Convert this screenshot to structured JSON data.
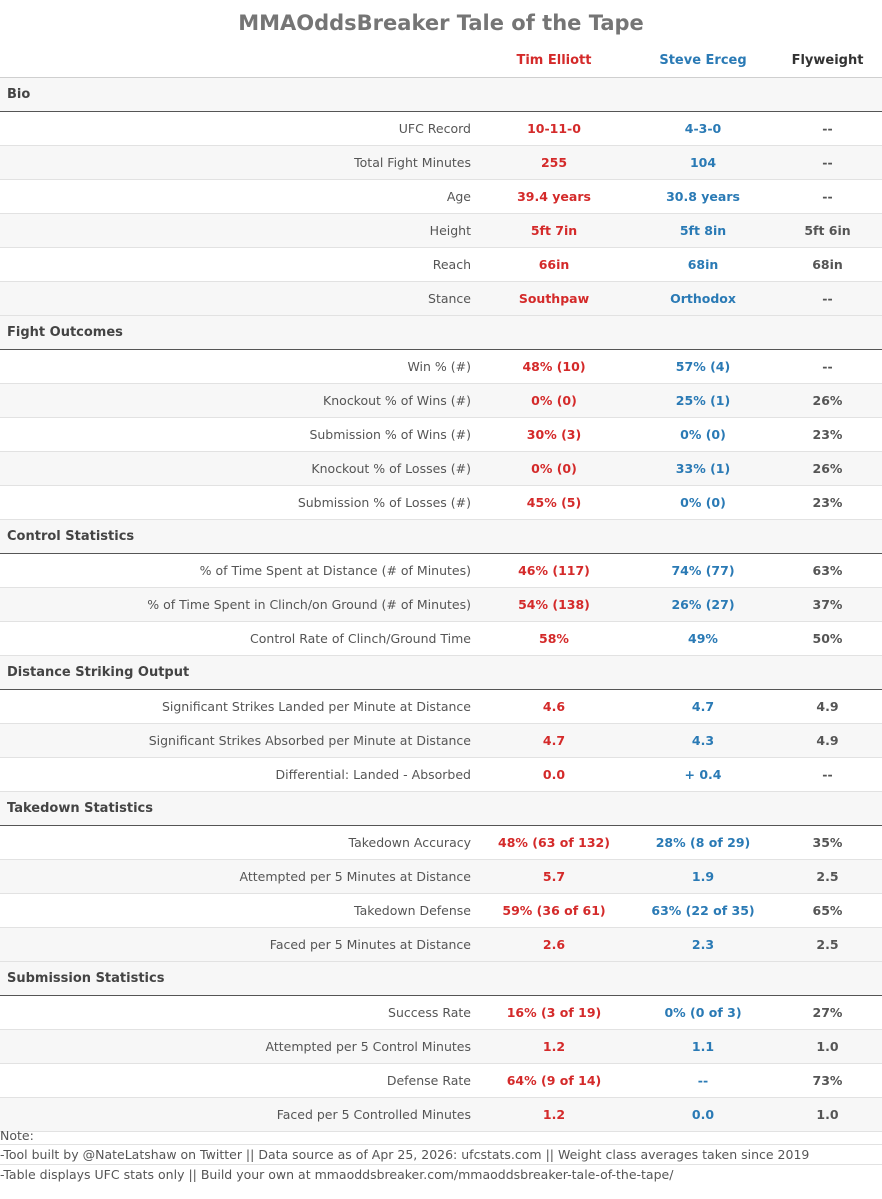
{
  "title": "MMAOddsBreaker Tale of the Tape",
  "fighters": {
    "fighter1": {
      "name": "Tim Elliott",
      "color": "#d42a2a"
    },
    "fighter2": {
      "name": "Steve Erceg",
      "color": "#2a7ab5"
    },
    "weight_class": {
      "name": "Flyweight",
      "color": "#333333"
    }
  },
  "sections": [
    {
      "name": "Bio",
      "rows": [
        {
          "label": "UFC Record",
          "f1": "10-11-0",
          "f2": "4-3-0",
          "wc": "--"
        },
        {
          "label": "Total Fight Minutes",
          "f1": "255",
          "f2": "104",
          "wc": "--"
        },
        {
          "label": "Age",
          "f1": "39.4 years",
          "f2": "30.8 years",
          "wc": "--"
        },
        {
          "label": "Height",
          "f1": "5ft 7in",
          "f2": "5ft 8in",
          "wc": "5ft 6in"
        },
        {
          "label": "Reach",
          "f1": "66in",
          "f2": "68in",
          "wc": "68in"
        },
        {
          "label": "Stance",
          "f1": "Southpaw",
          "f2": "Orthodox",
          "wc": "--"
        }
      ]
    },
    {
      "name": "Fight Outcomes",
      "rows": [
        {
          "label": "Win % (#)",
          "f1": "48% (10)",
          "f2": "57% (4)",
          "wc": "--"
        },
        {
          "label": "Knockout % of Wins (#)",
          "f1": "0% (0)",
          "f2": "25% (1)",
          "wc": "26%"
        },
        {
          "label": "Submission % of Wins (#)",
          "f1": "30% (3)",
          "f2": "0% (0)",
          "wc": "23%"
        },
        {
          "label": "Knockout % of Losses (#)",
          "f1": "0% (0)",
          "f2": "33% (1)",
          "wc": "26%"
        },
        {
          "label": "Submission % of Losses (#)",
          "f1": "45% (5)",
          "f2": "0% (0)",
          "wc": "23%"
        }
      ]
    },
    {
      "name": "Control Statistics",
      "rows": [
        {
          "label": "% of Time Spent at Distance (# of Minutes)",
          "f1": "46% (117)",
          "f2": "74% (77)",
          "wc": "63%"
        },
        {
          "label": "% of Time Spent in Clinch/on Ground (# of Minutes)",
          "f1": "54% (138)",
          "f2": "26% (27)",
          "wc": "37%"
        },
        {
          "label": "Control Rate of Clinch/Ground Time",
          "f1": "58%",
          "f2": "49%",
          "wc": "50%"
        }
      ]
    },
    {
      "name": "Distance Striking Output",
      "rows": [
        {
          "label": "Significant Strikes Landed per Minute at Distance",
          "f1": "4.6",
          "f2": "4.7",
          "wc": "4.9"
        },
        {
          "label": "Significant Strikes Absorbed per Minute at Distance",
          "f1": "4.7",
          "f2": "4.3",
          "wc": "4.9"
        },
        {
          "label": "Differential: Landed - Absorbed",
          "f1": "0.0",
          "f2": "+ 0.4",
          "wc": "--"
        }
      ]
    },
    {
      "name": "Takedown Statistics",
      "rows": [
        {
          "label": "Takedown Accuracy",
          "f1": "48% (63 of 132)",
          "f2": "28% (8 of 29)",
          "wc": "35%"
        },
        {
          "label": "Attempted per 5 Minutes at Distance",
          "f1": "5.7",
          "f2": "1.9",
          "wc": "2.5"
        },
        {
          "label": "Takedown Defense",
          "f1": "59% (36 of 61)",
          "f2": "63% (22 of 35)",
          "wc": "65%"
        },
        {
          "label": "Faced per 5 Minutes at Distance",
          "f1": "2.6",
          "f2": "2.3",
          "wc": "2.5"
        }
      ]
    },
    {
      "name": "Submission Statistics",
      "rows": [
        {
          "label": "Success Rate",
          "f1": "16% (3 of 19)",
          "f2": "0% (0 of 3)",
          "wc": "27%"
        },
        {
          "label": "Attempted per 5 Control Minutes",
          "f1": "1.2",
          "f2": "1.1",
          "wc": "1.0"
        },
        {
          "label": "Defense Rate",
          "f1": "64% (9 of 14)",
          "f2": "--",
          "wc": "73%"
        },
        {
          "label": "Faced per 5 Controlled Minutes",
          "f1": "1.2",
          "f2": "0.0",
          "wc": "1.0"
        }
      ]
    }
  ],
  "notes": {
    "label": "Note:",
    "lines": [
      "-Tool built by @NateLatshaw on Twitter || Data source as of Apr 25, 2026: ufcstats.com || Weight class averages taken since 2019",
      "-Table displays UFC stats only || Build your own at mmaoddsbreaker.com/mmaoddsbreaker-tale-of-the-tape/"
    ]
  }
}
